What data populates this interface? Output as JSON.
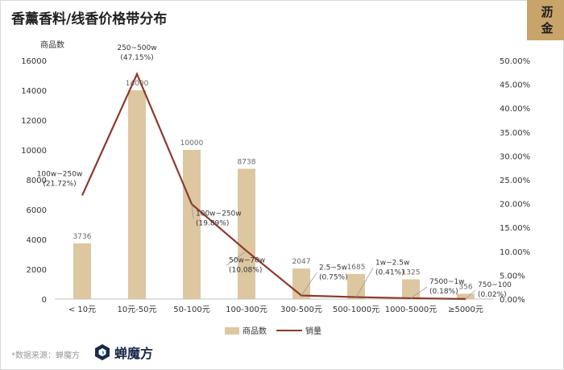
{
  "title": "香薰香料/线香价格带分布",
  "badge": {
    "line1": "沥",
    "line2": "金"
  },
  "footer": {
    "source": "*数据来源：蝉魔方",
    "brand": "蝉魔方"
  },
  "colors": {
    "bar": "#dcc7a1",
    "line": "#8b3a2b",
    "axis": "#555555",
    "label": "#333333"
  },
  "chart_data": {
    "type": "bar",
    "categories": [
      "< 10元",
      "10元-50元",
      "50-100元",
      "100-300元",
      "300-500元",
      "500-1000元",
      "1000-5000元",
      "≥5000元"
    ],
    "series": [
      {
        "name": "商品数",
        "type": "bar",
        "axis": "left",
        "values": [
          3736,
          14000,
          10000,
          8738,
          2047,
          1685,
          1325,
          356
        ],
        "value_labels": [
          "3736",
          "14000",
          "10000",
          "8738",
          "2047",
          "1685",
          "1325",
          "356"
        ]
      },
      {
        "name": "销量",
        "type": "line",
        "axis": "right",
        "values": [
          21.72,
          47.15,
          19.89,
          10.08,
          0.75,
          0.41,
          0.18,
          0.02
        ],
        "annotations": [
          [
            "100w~250w",
            "(21.72%)"
          ],
          [
            "250~500w",
            "(47.15%)"
          ],
          [
            "100w~250w",
            "(19.89%)"
          ],
          [
            "50w~70w",
            "(10.08%)"
          ],
          [
            "2.5~5w",
            "(0.75%)"
          ],
          [
            "1w~2.5w",
            "(0.41%)"
          ],
          [
            "7500~1w",
            "(0.18%)"
          ],
          [
            "750~100",
            "(0.02%)"
          ]
        ]
      }
    ],
    "ylabel_left": "商品数",
    "ylim_left": [
      0,
      16000
    ],
    "yticks_left": [
      "0",
      "2000",
      "4000",
      "6000",
      "8000",
      "10000",
      "12000",
      "14000",
      "16000"
    ],
    "ylim_right": [
      0,
      50
    ],
    "yticks_right": [
      "0.00%",
      "5.00%",
      "10.00%",
      "15.00%",
      "20.00%",
      "25.00%",
      "30.00%",
      "35.00%",
      "40.00%",
      "45.00%",
      "50.00%"
    ],
    "grid": false,
    "legend": "bottom-center"
  }
}
